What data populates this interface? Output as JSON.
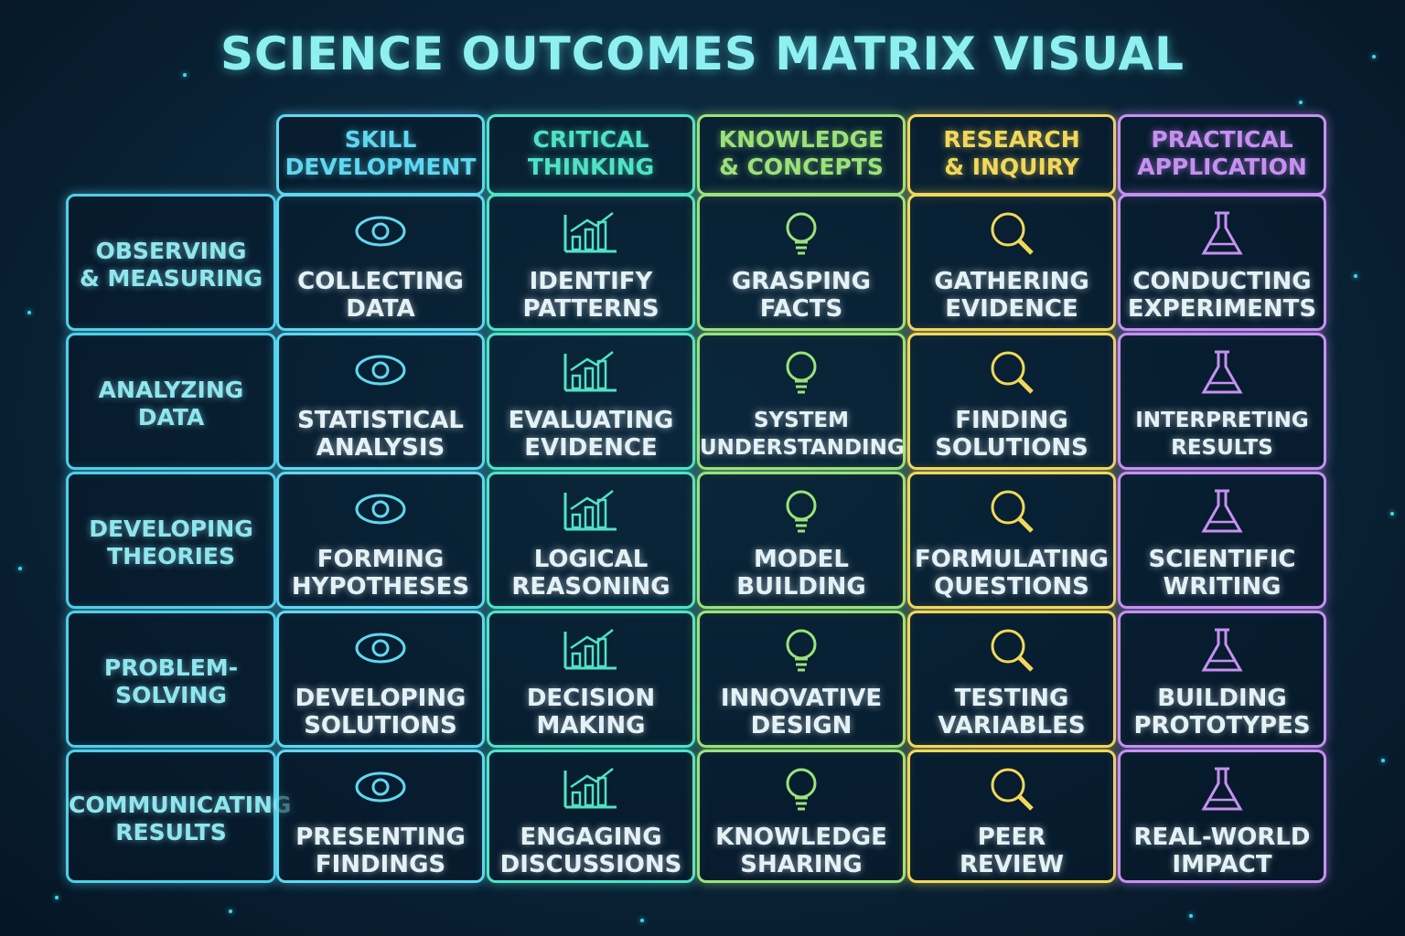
{
  "title": "SCIENCE OUTCOMES MATRIX VISUAL",
  "columns": [
    {
      "lines": [
        "SKILL",
        "DEVELOPMENT"
      ]
    },
    {
      "lines": [
        "CRITICAL",
        "THINKING"
      ]
    },
    {
      "lines": [
        "KNOWLEDGE",
        "& CONCEPTS"
      ]
    },
    {
      "lines": [
        "RESEARCH",
        "& INQUIRY"
      ]
    },
    {
      "lines": [
        "PRACTICAL",
        "APPLICATION"
      ]
    }
  ],
  "rows": [
    {
      "label": [
        "OBSERVING",
        "& MEASURING"
      ],
      "cells": [
        [
          "COLLECTING",
          "DATA"
        ],
        [
          "IDENTIFY",
          "PATTERNS"
        ],
        [
          "GRASPING",
          "FACTS"
        ],
        [
          "GATHERING",
          "EVIDENCE"
        ],
        [
          "CONDUCTING",
          "EXPERIMENTS"
        ]
      ]
    },
    {
      "label": [
        "ANALYZING",
        "DATA"
      ],
      "cells": [
        [
          "STATISTICAL",
          "ANALYSIS"
        ],
        [
          "EVALUATING",
          "EVIDENCE"
        ],
        [
          "SYSTEM",
          "UNDERSTANDING"
        ],
        [
          "FINDING",
          "SOLUTIONS"
        ],
        [
          "INTERPRETING",
          "RESULTS"
        ]
      ]
    },
    {
      "label": [
        "DEVELOPING",
        "THEORIES"
      ],
      "cells": [
        [
          "FORMING",
          "HYPOTHESES"
        ],
        [
          "LOGICAL",
          "REASONING"
        ],
        [
          "MODEL",
          "BUILDING"
        ],
        [
          "FORMULATING",
          "QUESTIONS"
        ],
        [
          "SCIENTIFIC",
          "WRITING"
        ]
      ]
    },
    {
      "label": [
        "PROBLEM-",
        "SOLVING"
      ],
      "cells": [
        [
          "DEVELOPING",
          "SOLUTIONS"
        ],
        [
          "DECISION",
          "MAKING"
        ],
        [
          "INNOVATIVE",
          "DESIGN"
        ],
        [
          "TESTING",
          "VARIABLES"
        ],
        [
          "BUILDING",
          "PROTOTYPES"
        ]
      ]
    },
    {
      "label": [
        "COMMUNICATING",
        "RESULTS"
      ],
      "cells": [
        [
          "PRESENTING",
          "FINDINGS"
        ],
        [
          "ENGAGING",
          "DISCUSSIONS"
        ],
        [
          "KNOWLEDGE",
          "SHARING"
        ],
        [
          "PEER",
          "REVIEW"
        ],
        [
          "REAL-WORLD",
          "IMPACT"
        ]
      ]
    }
  ]
}
